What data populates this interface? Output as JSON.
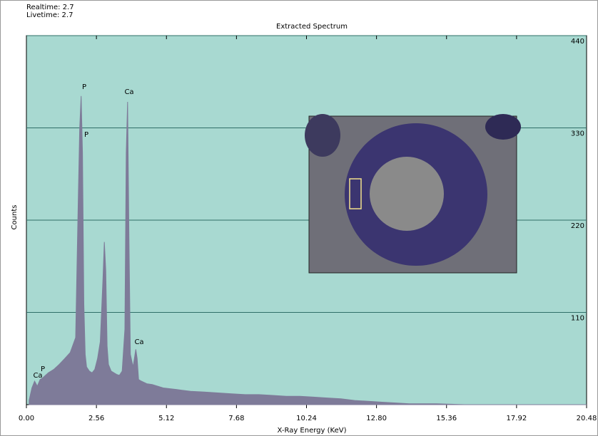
{
  "chart_data": {
    "type": "area",
    "header": [
      "Realtime: 2.7",
      "Livetime: 2.7"
    ],
    "title": "Extracted Spectrum",
    "y_label": "Counts",
    "x_label": "X-Ray Energy (KeV)",
    "x": [
      0.1,
      0.2,
      0.3,
      0.4,
      0.5,
      0.6,
      0.8,
      1.0,
      1.2,
      1.4,
      1.6,
      1.8,
      1.9,
      1.95,
      2.0,
      2.05,
      2.1,
      2.15,
      2.2,
      2.3,
      2.4,
      2.5,
      2.6,
      2.7,
      2.8,
      2.85,
      2.9,
      2.95,
      3.0,
      3.1,
      3.2,
      3.3,
      3.4,
      3.5,
      3.6,
      3.65,
      3.7,
      3.75,
      3.8,
      3.9,
      4.0,
      4.05,
      4.1,
      4.2,
      4.4,
      4.6,
      4.8,
      5.0,
      5.5,
      6.0,
      6.5,
      7.0,
      7.5,
      8.0,
      8.5,
      9.0,
      9.5,
      10.0,
      10.5,
      11.0,
      11.5,
      12.0,
      12.5,
      13.0,
      13.5,
      14.0,
      15.0,
      16.0,
      18.0,
      20.48
    ],
    "values": [
      5,
      20,
      28,
      22,
      30,
      32,
      38,
      42,
      48,
      55,
      62,
      80,
      250,
      330,
      368,
      300,
      120,
      60,
      45,
      40,
      38,
      42,
      55,
      75,
      150,
      194,
      160,
      70,
      48,
      40,
      38,
      36,
      35,
      40,
      90,
      300,
      361,
      200,
      60,
      45,
      66,
      55,
      30,
      28,
      25,
      24,
      22,
      20,
      18,
      16,
      15,
      14,
      13,
      12,
      12,
      11,
      10,
      10,
      9,
      8,
      7,
      5,
      4,
      3,
      2,
      1,
      1,
      0,
      0,
      0
    ],
    "color": "#7e7b99",
    "background": "#a8d9d1",
    "xlim": [
      0,
      20.48
    ],
    "xticks": [
      {
        "value": 0,
        "label": "0.00"
      },
      2.56,
      5.12,
      7.68,
      10.24,
      {
        "value": 12.8,
        "label": "12.80"
      },
      15.36,
      17.92,
      20.48
    ],
    "ylim": [
      0,
      440
    ],
    "yticks": [
      110,
      220,
      330,
      440
    ],
    "grid": true,
    "annotations": [
      "P",
      "P",
      "Ca",
      "Ca",
      "Ca",
      "P"
    ]
  }
}
